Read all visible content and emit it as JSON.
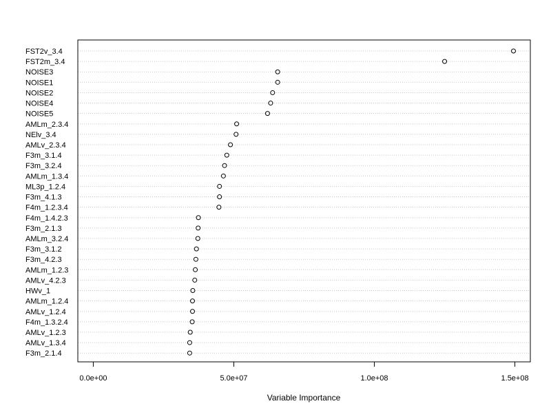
{
  "chart_data": {
    "type": "scatter",
    "title": "",
    "xlabel": "Variable Importance",
    "ylabel": "",
    "xlim": [
      -5500000,
      155500000
    ],
    "x_ticks": [
      0,
      50000000,
      100000000,
      150000000
    ],
    "x_tick_labels": [
      "0.0e+00",
      "5.0e+07",
      "1.0e+08",
      "1.5e+08"
    ],
    "grid": "horizontal dotted lines per variable",
    "legend": "none",
    "marker": "open circle",
    "categories": [
      "FST2v_3.4",
      "FST2m_3.4",
      "NOISE3",
      "NOISE1",
      "NOISE2",
      "NOISE4",
      "NOISE5",
      "AMLm_2.3.4",
      "NElv_3.4",
      "AMLv_2.3.4",
      "F3m_3.1.4",
      "F3m_3.2.4",
      "AMLm_1.3.4",
      "ML3p_1.2.4",
      "F3m_4.1.3",
      "F4m_1.2.3.4",
      "F4m_1.4.2.3",
      "F3m_2.1.3",
      "AMLm_3.2.4",
      "F3m_3.1.2",
      "F3m_4.2.3",
      "AMLm_1.2.3",
      "AMLv_4.2.3",
      "HWv_1",
      "AMLm_1.2.4",
      "AMLv_1.2.4",
      "F4m_1.3.2.4",
      "AMLv_1.2.3",
      "AMLv_1.3.4",
      "F3m_2.1.4"
    ],
    "values": [
      149500000,
      125000000,
      65600000,
      65600000,
      63800000,
      63100000,
      62000000,
      51000000,
      50800000,
      48800000,
      47500000,
      46700000,
      46300000,
      44900000,
      44900000,
      44700000,
      37400000,
      37300000,
      37200000,
      36700000,
      36500000,
      36300000,
      36100000,
      35400000,
      35300000,
      35300000,
      35200000,
      34500000,
      34300000,
      34300000
    ]
  }
}
